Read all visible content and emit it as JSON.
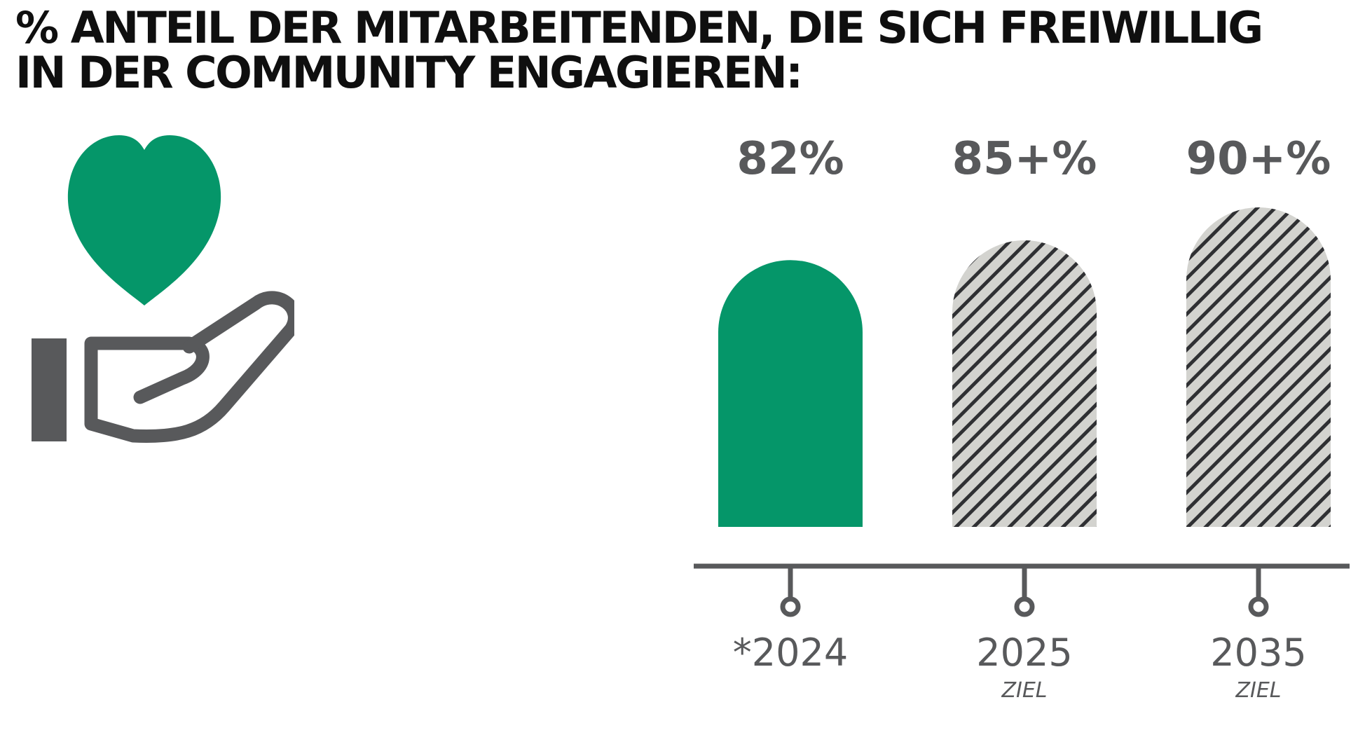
{
  "title": {
    "line1": "% ANTEIL DER MITARBEITENDEN, DIE SICH FREIWILLIG",
    "line2": "IN DER COMMUNITY ENGAGIEREN:"
  },
  "icons": {
    "heart": "heart-icon",
    "hand": "open-hand-icon"
  },
  "colors": {
    "accent_green": "#059669",
    "gray": "#58595b",
    "hatch_bg": "#d3d3cf",
    "title": "#0f0f0f"
  },
  "chart_data": {
    "type": "bar",
    "title": "% ANTEIL DER MITARBEITENDEN, DIE SICH FREIWILLIG IN DER COMMUNITY ENGAGIEREN:",
    "categories": [
      "*2024",
      "2025",
      "2035"
    ],
    "sublabels": [
      "",
      "ZIEL",
      "ZIEL"
    ],
    "values": [
      82,
      85,
      90
    ],
    "value_labels": [
      "82%",
      "85+%",
      "90+%"
    ],
    "styles": [
      "solid",
      "hatched",
      "hatched"
    ],
    "xlabel": "",
    "ylabel": "",
    "grid": false,
    "legend": "none"
  }
}
